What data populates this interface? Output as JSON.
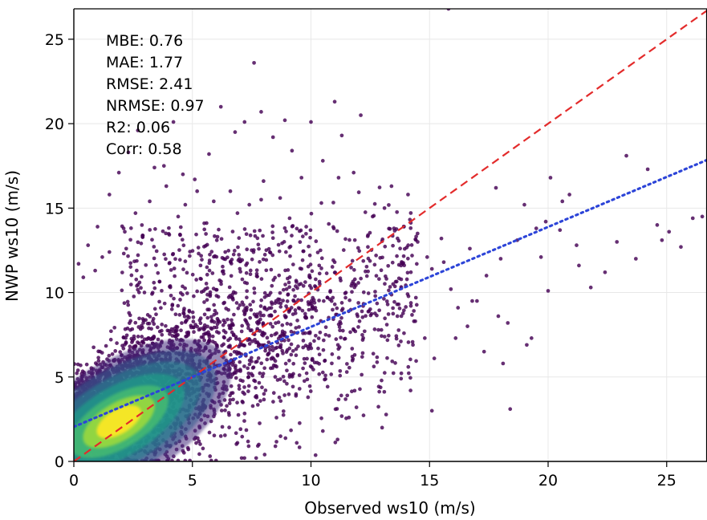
{
  "chart_data": {
    "type": "scatter",
    "xlabel": "Observed ws10 (m/s)",
    "ylabel": "NWP ws10 (m/s)",
    "xlim": [
      0,
      26.7
    ],
    "ylim": [
      0,
      26.8
    ],
    "x_ticks": [
      0,
      5,
      10,
      15,
      20,
      25
    ],
    "y_ticks": [
      0,
      5,
      10,
      15,
      20,
      25
    ],
    "x_tick_labels": [
      "0",
      "5",
      "10",
      "15",
      "20",
      "25"
    ],
    "y_tick_labels": [
      "0",
      "5",
      "10",
      "15",
      "20",
      "25"
    ],
    "grid": true,
    "colormap": "viridis",
    "metrics": [
      {
        "label": "MBE",
        "value": 0.76,
        "text": "MBE: 0.76"
      },
      {
        "label": "MAE",
        "value": 1.77,
        "text": "MAE: 1.77"
      },
      {
        "label": "RMSE",
        "value": 2.41,
        "text": "RMSE: 2.41"
      },
      {
        "label": "NRMSE",
        "value": 0.97,
        "text": "NRMSE: 0.97"
      },
      {
        "label": "R2",
        "value": 0.06,
        "text": "R2: 0.06"
      },
      {
        "label": "Corr",
        "value": 0.58,
        "text": "Corr: 0.58"
      }
    ],
    "reference_lines": [
      {
        "kind": "identity",
        "color": "#e32b2b",
        "style": "dashed",
        "x": [
          0,
          26.7
        ],
        "y": [
          0,
          26.7
        ]
      },
      {
        "kind": "regression",
        "color": "#2c44d8",
        "style": "dotted",
        "x": [
          0,
          26.7
        ],
        "y": [
          2.05,
          17.85
        ]
      }
    ],
    "dense_core": {
      "center": [
        1.9,
        2.35
      ],
      "colors": [
        "#440154",
        "#46317e",
        "#365c8d",
        "#277f8e",
        "#1fa187",
        "#4ac16d",
        "#a0da39",
        "#fde725"
      ]
    },
    "outlier_points": [
      [
        0.2,
        11.7
      ],
      [
        0.6,
        12.8
      ],
      [
        1.0,
        13.9
      ],
      [
        1.5,
        15.8
      ],
      [
        1.9,
        17.1
      ],
      [
        2.3,
        18.3
      ],
      [
        2.7,
        19.6
      ],
      [
        3.4,
        17.4
      ],
      [
        3.8,
        17.5
      ],
      [
        4.2,
        20.1
      ],
      [
        4.7,
        15.2
      ],
      [
        5.1,
        16.7
      ],
      [
        5.7,
        18.2
      ],
      [
        6.2,
        21.0
      ],
      [
        6.8,
        19.5
      ],
      [
        7.2,
        20.1
      ],
      [
        7.6,
        23.6
      ],
      [
        7.9,
        20.7
      ],
      [
        8.4,
        19.2
      ],
      [
        8.9,
        20.2
      ],
      [
        9.2,
        18.4
      ],
      [
        9.6,
        16.8
      ],
      [
        10.0,
        20.1
      ],
      [
        10.5,
        17.8
      ],
      [
        11.0,
        21.3
      ],
      [
        11.3,
        19.3
      ],
      [
        11.8,
        17.1
      ],
      [
        12.1,
        20.5
      ],
      [
        12.6,
        14.5
      ],
      [
        13.1,
        15.0
      ],
      [
        13.5,
        13.8
      ],
      [
        13.8,
        11.6
      ],
      [
        14.1,
        12.8
      ],
      [
        14.5,
        13.0
      ],
      [
        14.9,
        12.1
      ],
      [
        15.1,
        11.4
      ],
      [
        15.5,
        13.2
      ],
      [
        15.9,
        10.2
      ],
      [
        16.2,
        9.1
      ],
      [
        16.6,
        8.0
      ],
      [
        17.0,
        9.5
      ],
      [
        17.4,
        11.0
      ],
      [
        17.9,
        8.6
      ],
      [
        18.3,
        8.2
      ],
      [
        18.7,
        13.1
      ],
      [
        19.0,
        15.2
      ],
      [
        19.3,
        7.3
      ],
      [
        19.7,
        12.1
      ],
      [
        20.1,
        16.8
      ],
      [
        20.5,
        13.7
      ],
      [
        20.9,
        15.8
      ],
      [
        21.3,
        11.6
      ],
      [
        21.8,
        10.3
      ],
      [
        22.4,
        11.2
      ],
      [
        22.9,
        13.0
      ],
      [
        23.3,
        18.1
      ],
      [
        23.7,
        12.0
      ],
      [
        24.2,
        17.3
      ],
      [
        24.6,
        14.0
      ],
      [
        25.1,
        13.6
      ],
      [
        25.6,
        12.7
      ],
      [
        26.1,
        14.4
      ],
      [
        26.5,
        14.5
      ],
      [
        14.8,
        7.3
      ],
      [
        16.8,
        9.5
      ],
      [
        18.4,
        3.1
      ],
      [
        19.9,
        14.2
      ],
      [
        20.6,
        15.4
      ],
      [
        21.2,
        12.8
      ],
      [
        17.8,
        16.2
      ],
      [
        18.0,
        12.0
      ],
      [
        20.0,
        10.1
      ],
      [
        19.5,
        13.8
      ],
      [
        16.7,
        12.6
      ],
      [
        15.6,
        11.8
      ],
      [
        24.8,
        13.1
      ],
      [
        12.4,
        12.7
      ],
      [
        13.7,
        9.3
      ],
      [
        14.4,
        8.3
      ],
      [
        11.7,
        10.4
      ],
      [
        11.0,
        11.8
      ],
      [
        10.4,
        12.5
      ],
      [
        9.8,
        13.9
      ],
      [
        9.1,
        14.4
      ],
      [
        8.7,
        15.6
      ],
      [
        8.0,
        16.6
      ],
      [
        7.4,
        15.2
      ],
      [
        6.6,
        16.0
      ],
      [
        5.9,
        15.4
      ],
      [
        5.2,
        16.0
      ],
      [
        4.6,
        17.0
      ],
      [
        3.9,
        16.3
      ],
      [
        3.2,
        15.4
      ],
      [
        2.6,
        14.7
      ],
      [
        2.1,
        13.8
      ],
      [
        1.5,
        12.4
      ],
      [
        0.9,
        11.3
      ],
      [
        0.4,
        10.9
      ],
      [
        1.2,
        12.1
      ],
      [
        2.9,
        13.3
      ],
      [
        4.4,
        14.5
      ],
      [
        5.5,
        14.1
      ],
      [
        6.9,
        14.7
      ],
      [
        7.9,
        15.5
      ],
      [
        9.6,
        11.4
      ],
      [
        10.8,
        9.6
      ],
      [
        12.2,
        9.2
      ],
      [
        13.2,
        8.1
      ],
      [
        14.3,
        6.9
      ],
      [
        15.2,
        6.1
      ],
      [
        16.1,
        7.3
      ],
      [
        17.3,
        6.5
      ],
      [
        18.1,
        5.8
      ],
      [
        19.1,
        6.9
      ],
      [
        15.8,
        26.8
      ],
      [
        13.8,
        4.9
      ],
      [
        14.2,
        4.2
      ],
      [
        15.1,
        3.0
      ],
      [
        13.0,
        2.0
      ],
      [
        11.6,
        2.6
      ],
      [
        10.5,
        1.8
      ],
      [
        9.4,
        1.1
      ],
      [
        8.5,
        0.9
      ],
      [
        7.8,
        1.0
      ],
      [
        6.9,
        1.1
      ],
      [
        6.2,
        1.5
      ]
    ]
  }
}
